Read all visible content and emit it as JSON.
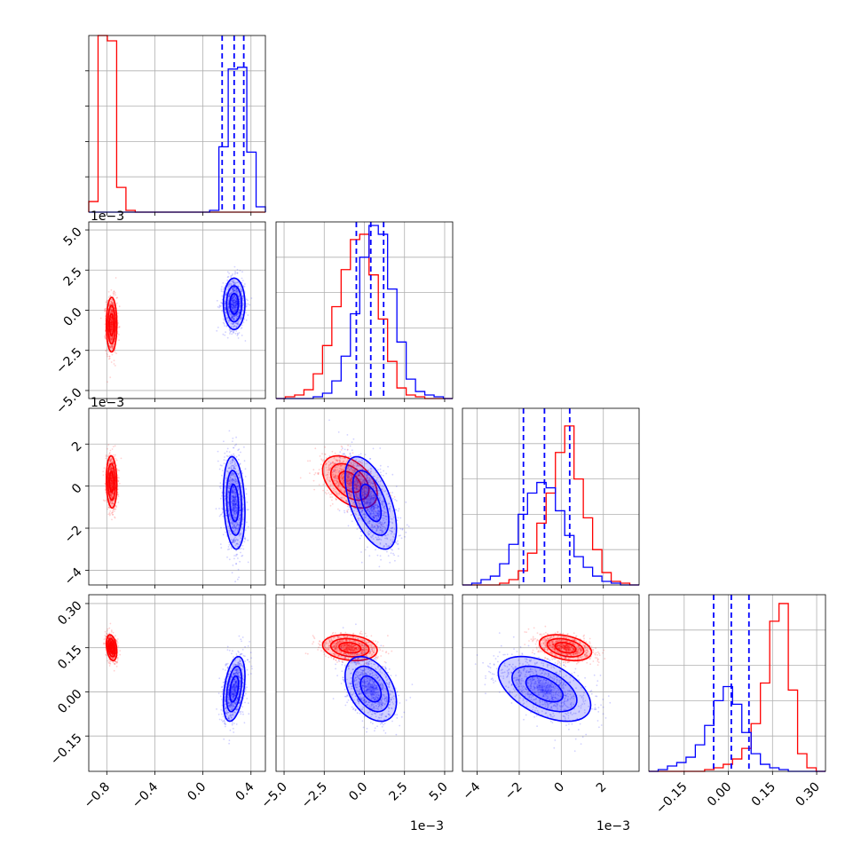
{
  "chart_data": {
    "type": "scatter",
    "subtype": "corner-plot",
    "title": "",
    "grid": true,
    "colors": {
      "series_a": "#ff0000",
      "series_b": "#0000ff",
      "grid": "#b0b0b0",
      "frame": "#000000"
    },
    "series": [
      {
        "color": "#ff0000",
        "mean": [
          -0.76,
          -0.0009,
          0.0002,
          0.15
        ],
        "sd": [
          0.022,
          0.00085,
          0.00062,
          0.022
        ]
      },
      {
        "color": "#0000ff",
        "mean": [
          0.26,
          0.0004,
          -0.0008,
          0.01
        ],
        "sd": [
          0.045,
          0.0008,
          0.0011,
          0.055
        ]
      }
    ],
    "quantile_lines": [
      [
        0.16,
        0.26,
        0.34
      ],
      [
        -0.0005,
        0.0004,
        0.0012
      ],
      [
        -0.0018,
        -0.0008,
        0.0004
      ],
      [
        -0.05,
        0.01,
        0.07
      ]
    ],
    "axes": [
      {
        "range": [
          -0.95,
          0.52
        ],
        "ticks": [
          -0.8,
          -0.4,
          0.0,
          0.4
        ],
        "tick_labels": [
          "−0.8",
          "−0.4",
          "0.0",
          "0.4"
        ],
        "offset": ""
      },
      {
        "range": [
          -0.0055,
          0.0055
        ],
        "ticks": [
          -0.005,
          -0.0025,
          0,
          0.0025,
          0.005
        ],
        "tick_labels": [
          "−5.0",
          "−2.5",
          "0.0",
          "2.5",
          "5.0"
        ],
        "offset": "1e−3"
      },
      {
        "range": [
          -0.0047,
          0.0037
        ],
        "ticks": [
          -0.004,
          -0.002,
          0,
          0.002
        ],
        "tick_labels": [
          "−4",
          "−2",
          "0",
          "2"
        ],
        "offset": "1e−3"
      },
      {
        "range": [
          -0.27,
          0.33
        ],
        "ticks": [
          -0.15,
          0.0,
          0.15,
          0.3
        ],
        "tick_labels": [
          "−0.15",
          "0.00",
          "0.15",
          "0.30"
        ],
        "offset": ""
      }
    ],
    "histograms": [
      {
        "series_a": [
          0.06,
          1.0,
          0.97,
          0.14,
          0.01,
          0,
          0,
          0,
          0,
          0,
          0,
          0,
          0,
          0,
          0,
          0,
          0,
          0,
          0
        ],
        "series_b": [
          0,
          0,
          0,
          0,
          0,
          0,
          0,
          0,
          0,
          0,
          0,
          0,
          0,
          0.01,
          0.37,
          0.81,
          0.82,
          0.34,
          0.03
        ]
      },
      {
        "series_a": [
          0,
          0.01,
          0.02,
          0.05,
          0.14,
          0.3,
          0.52,
          0.73,
          0.9,
          0.93,
          0.7,
          0.45,
          0.21,
          0.06,
          0.02,
          0.01,
          0,
          0,
          0
        ],
        "series_b": [
          0,
          0,
          0,
          0,
          0.01,
          0.03,
          0.1,
          0.24,
          0.48,
          0.8,
          0.98,
          0.93,
          0.62,
          0.32,
          0.11,
          0.04,
          0.02,
          0.01,
          0
        ]
      },
      {
        "series_a": [
          0,
          0,
          0,
          0,
          0.01,
          0.03,
          0.08,
          0.18,
          0.35,
          0.52,
          0.75,
          0.9,
          0.6,
          0.38,
          0.2,
          0.07,
          0.02,
          0.01,
          0
        ],
        "series_b": [
          0,
          0.01,
          0.03,
          0.05,
          0.12,
          0.23,
          0.4,
          0.52,
          0.58,
          0.55,
          0.42,
          0.28,
          0.16,
          0.1,
          0.05,
          0.02,
          0.01,
          0,
          0
        ]
      },
      {
        "series_a": [
          0,
          0,
          0,
          0,
          0,
          0,
          0.01,
          0.02,
          0.04,
          0.07,
          0.13,
          0.27,
          0.5,
          0.85,
          0.95,
          0.46,
          0.1,
          0.02,
          0
        ],
        "series_b": [
          0,
          0.01,
          0.03,
          0.05,
          0.08,
          0.15,
          0.26,
          0.4,
          0.48,
          0.38,
          0.22,
          0.1,
          0.04,
          0.02,
          0.01,
          0,
          0,
          0,
          0
        ]
      }
    ]
  }
}
